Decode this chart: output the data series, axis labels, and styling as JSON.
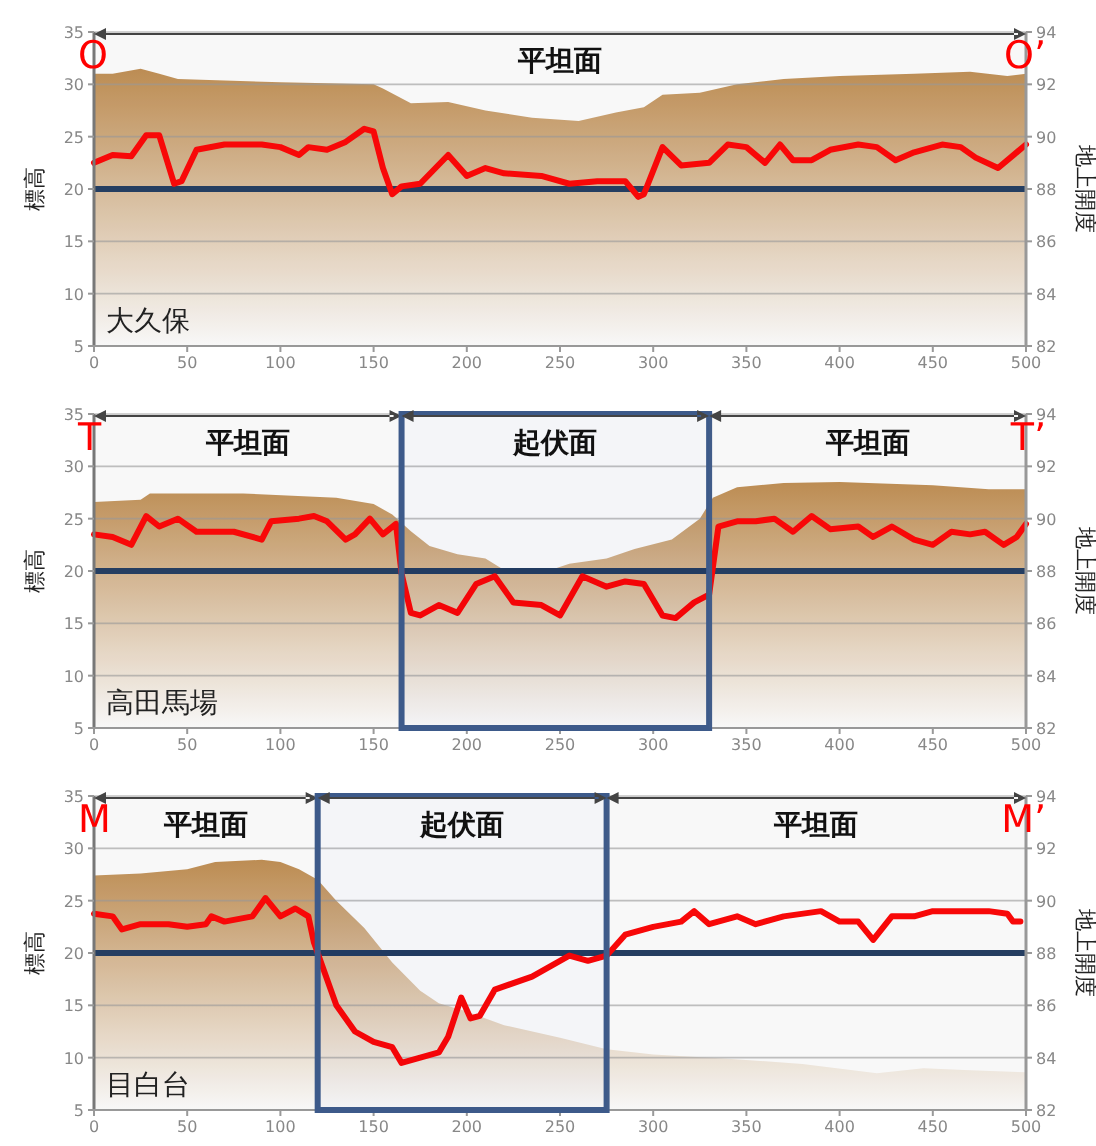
{
  "chart_data": [
    {
      "type": "line",
      "xlim": [
        0,
        500
      ],
      "xticks": [
        0,
        50,
        100,
        150,
        200,
        250,
        300,
        350,
        400,
        450,
        500
      ],
      "ylim": [
        5,
        35
      ],
      "yticks": [
        5,
        10,
        15,
        20,
        25,
        30,
        35
      ],
      "y2lim": [
        82,
        94
      ],
      "y2ticks": [
        82,
        84,
        86,
        88,
        90,
        92,
        94
      ],
      "ylabel": "標高",
      "y2label": "地上開度",
      "grid": "y",
      "annotations": [
        "O",
        "O’",
        "大久保"
      ],
      "ref_lines": [
        {
          "axis": "y",
          "value": 20,
          "color": "#1f3a5f"
        }
      ],
      "bands": [
        {
          "axis": "x",
          "from": 0,
          "to": 500,
          "label": "平坦面"
        }
      ],
      "series": [
        {
          "type": "area",
          "color": "#c08d50",
          "x": [
            0,
            10,
            25,
            35,
            45,
            100,
            150,
            155,
            170,
            190,
            210,
            235,
            260,
            280,
            295,
            305,
            325,
            345,
            370,
            400,
            440,
            470,
            490,
            500
          ],
          "values": [
            31,
            31,
            31.5,
            31,
            30.5,
            30.2,
            30,
            29.6,
            28.2,
            28.3,
            27.5,
            26.8,
            26.5,
            27.3,
            27.8,
            29,
            29.2,
            30,
            30.5,
            30.8,
            31,
            31.2,
            30.8,
            31
          ]
        },
        {
          "type": "line",
          "axis": "y2",
          "color": "#ff0000",
          "x": [
            0,
            10,
            20,
            28,
            35,
            43,
            47,
            55,
            70,
            90,
            100,
            110,
            115,
            125,
            135,
            145,
            150,
            155,
            160,
            165,
            175,
            190,
            200,
            210,
            220,
            240,
            255,
            270,
            285,
            292,
            295,
            305,
            315,
            330,
            340,
            350,
            360,
            368,
            375,
            385,
            395,
            410,
            420,
            430,
            440,
            455,
            465,
            473,
            485,
            495,
            500
          ],
          "values": [
            89.0,
            89.3,
            89.25,
            90.05,
            90.05,
            88.2,
            88.3,
            89.5,
            89.7,
            89.7,
            89.6,
            89.3,
            89.6,
            89.5,
            89.8,
            90.3,
            90.2,
            88.8,
            87.8,
            88.1,
            88.2,
            89.3,
            88.5,
            88.8,
            88.6,
            88.5,
            88.2,
            88.3,
            88.3,
            87.7,
            87.8,
            89.6,
            88.9,
            89.0,
            89.7,
            89.6,
            89.0,
            89.7,
            89.1,
            89.1,
            89.5,
            89.7,
            89.6,
            89.1,
            89.4,
            89.7,
            89.6,
            89.2,
            88.8,
            89.4,
            89.7
          ]
        }
      ]
    },
    {
      "type": "line",
      "xlim": [
        0,
        500
      ],
      "xticks": [
        0,
        50,
        100,
        150,
        200,
        250,
        300,
        350,
        400,
        450,
        500
      ],
      "ylim": [
        5,
        35
      ],
      "yticks": [
        5,
        10,
        15,
        20,
        25,
        30,
        35
      ],
      "y2lim": [
        82,
        94
      ],
      "y2ticks": [
        82,
        84,
        86,
        88,
        90,
        92,
        94
      ],
      "ylabel": "標高",
      "y2label": "地上開度",
      "grid": "y",
      "annotations": [
        "T",
        "T’",
        "高田馬場"
      ],
      "ref_lines": [
        {
          "axis": "y",
          "value": 20,
          "color": "#1f3a5f"
        }
      ],
      "bands": [
        {
          "axis": "x",
          "from": 0,
          "to": 165,
          "label": "平坦面"
        },
        {
          "axis": "x",
          "from": 165,
          "to": 330,
          "label": "起伏面",
          "color": "#3d5a8a"
        },
        {
          "axis": "x",
          "from": 330,
          "to": 500,
          "label": "平坦面"
        }
      ],
      "series": [
        {
          "type": "area",
          "color": "#c08d50",
          "x": [
            0,
            25,
            30,
            80,
            130,
            150,
            160,
            170,
            180,
            195,
            210,
            220,
            245,
            255,
            275,
            290,
            310,
            325,
            332,
            345,
            370,
            400,
            450,
            480,
            500
          ],
          "values": [
            26.6,
            26.8,
            27.4,
            27.4,
            27.0,
            26.4,
            25.4,
            23.8,
            22.4,
            21.6,
            21.2,
            20.1,
            20.1,
            20.7,
            21.2,
            22.1,
            23.0,
            25.0,
            27.0,
            28.0,
            28.4,
            28.5,
            28.2,
            27.8,
            27.8
          ]
        },
        {
          "type": "line",
          "axis": "y2",
          "color": "#ff0000",
          "x": [
            0,
            10,
            20,
            28,
            35,
            45,
            55,
            75,
            90,
            95,
            110,
            118,
            125,
            135,
            140,
            148,
            155,
            162,
            165,
            170,
            175,
            185,
            195,
            205,
            215,
            225,
            240,
            250,
            262,
            275,
            285,
            295,
            305,
            312,
            322,
            330,
            335,
            345,
            355,
            365,
            375,
            385,
            395,
            410,
            418,
            428,
            440,
            450,
            460,
            470,
            478,
            488,
            495,
            500
          ],
          "values": [
            89.4,
            89.3,
            89.0,
            90.1,
            89.7,
            90.0,
            89.5,
            89.5,
            89.2,
            89.9,
            90.0,
            90.1,
            89.9,
            89.2,
            89.4,
            90.0,
            89.4,
            89.8,
            87.9,
            86.4,
            86.3,
            86.7,
            86.4,
            87.5,
            87.8,
            86.8,
            86.7,
            86.3,
            87.8,
            87.4,
            87.6,
            87.5,
            86.3,
            86.2,
            86.8,
            87.1,
            89.7,
            89.9,
            89.9,
            90.0,
            89.5,
            90.1,
            89.6,
            89.7,
            89.3,
            89.7,
            89.2,
            89.0,
            89.5,
            89.4,
            89.5,
            89.0,
            89.3,
            89.8
          ]
        }
      ]
    },
    {
      "type": "line",
      "xlim": [
        0,
        500
      ],
      "xticks": [
        0,
        50,
        100,
        150,
        200,
        250,
        300,
        350,
        400,
        450,
        500
      ],
      "ylim": [
        5,
        35
      ],
      "yticks": [
        5,
        10,
        15,
        20,
        25,
        30,
        35
      ],
      "y2lim": [
        82,
        94
      ],
      "y2ticks": [
        82,
        84,
        86,
        88,
        90,
        92,
        94
      ],
      "ylabel": "標高",
      "y2label": "地上開度",
      "grid": "y",
      "annotations": [
        "M",
        "M’",
        "目白台"
      ],
      "ref_lines": [
        {
          "axis": "y",
          "value": 20,
          "color": "#1f3a5f"
        }
      ],
      "bands": [
        {
          "axis": "x",
          "from": 0,
          "to": 120,
          "label": "平坦面"
        },
        {
          "axis": "x",
          "from": 120,
          "to": 275,
          "label": "起伏面",
          "color": "#3d5a8a"
        },
        {
          "axis": "x",
          "from": 275,
          "to": 500,
          "label": "平坦面"
        }
      ],
      "series": [
        {
          "type": "area",
          "color": "#c08d50",
          "x": [
            0,
            25,
            50,
            65,
            90,
            100,
            110,
            120,
            130,
            145,
            160,
            175,
            185,
            200,
            220,
            250,
            275,
            300,
            340,
            380,
            420,
            445,
            470,
            500
          ],
          "values": [
            27.4,
            27.6,
            28.0,
            28.7,
            28.9,
            28.7,
            28.0,
            27.0,
            25.0,
            22.4,
            19.1,
            16.4,
            15.2,
            14.4,
            13.1,
            11.9,
            10.8,
            10.3,
            9.9,
            9.4,
            8.5,
            9.0,
            8.8,
            8.6
          ]
        },
        {
          "type": "line",
          "axis": "y2",
          "color": "#ff0000",
          "x": [
            0,
            10,
            15,
            25,
            40,
            50,
            60,
            63,
            70,
            85,
            92,
            100,
            108,
            115,
            118,
            122,
            130,
            140,
            150,
            160,
            165,
            175,
            185,
            190,
            197,
            202,
            207,
            215,
            235,
            245,
            255,
            265,
            275,
            285,
            300,
            315,
            322,
            330,
            345,
            355,
            370,
            390,
            400,
            410,
            418,
            428,
            440,
            450,
            480,
            490,
            493,
            497
          ],
          "values": [
            89.5,
            89.4,
            88.9,
            89.1,
            89.1,
            89.0,
            89.1,
            89.4,
            89.2,
            89.4,
            90.1,
            89.4,
            89.7,
            89.4,
            88.4,
            87.6,
            86.0,
            85.0,
            84.6,
            84.4,
            83.8,
            84.0,
            84.2,
            84.8,
            86.3,
            85.5,
            85.6,
            86.6,
            87.1,
            87.5,
            87.9,
            87.7,
            87.9,
            88.7,
            89.0,
            89.2,
            89.6,
            89.1,
            89.4,
            89.1,
            89.4,
            89.6,
            89.2,
            89.2,
            88.5,
            89.4,
            89.4,
            89.6,
            89.6,
            89.5,
            89.2,
            89.2
          ]
        }
      ]
    }
  ]
}
